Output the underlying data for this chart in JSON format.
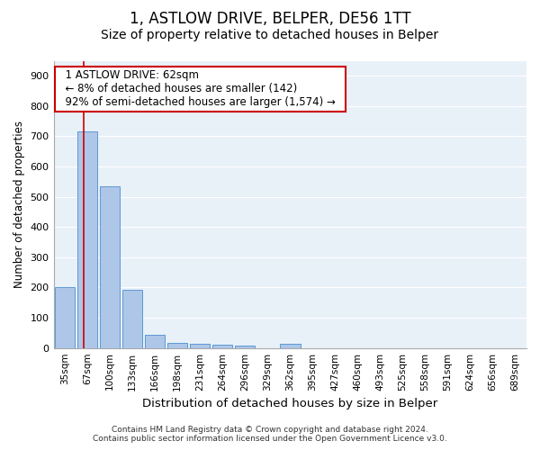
{
  "title1": "1, ASTLOW DRIVE, BELPER, DE56 1TT",
  "title2": "Size of property relative to detached houses in Belper",
  "xlabel": "Distribution of detached houses by size in Belper",
  "ylabel": "Number of detached properties",
  "categories": [
    "35sqm",
    "67sqm",
    "100sqm",
    "133sqm",
    "166sqm",
    "198sqm",
    "231sqm",
    "264sqm",
    "296sqm",
    "329sqm",
    "362sqm",
    "395sqm",
    "427sqm",
    "460sqm",
    "493sqm",
    "525sqm",
    "558sqm",
    "591sqm",
    "624sqm",
    "656sqm",
    "689sqm"
  ],
  "values": [
    200,
    715,
    535,
    193,
    45,
    18,
    14,
    10,
    8,
    0,
    13,
    0,
    0,
    0,
    0,
    0,
    0,
    0,
    0,
    0,
    0
  ],
  "bar_color": "#aec6e8",
  "bar_edge_color": "#5b9bd5",
  "vline_x_index": 0.84,
  "vline_color": "#cc0000",
  "annotation_text": "  1 ASTLOW DRIVE: 62sqm  \n  ← 8% of detached houses are smaller (142)  \n  92% of semi-detached houses are larger (1,574) →  ",
  "annotation_box_color": "#ffffff",
  "annotation_box_edge_color": "#cc0000",
  "ylim": [
    0,
    950
  ],
  "yticks": [
    0,
    100,
    200,
    300,
    400,
    500,
    600,
    700,
    800,
    900
  ],
  "bg_color": "#e8f0f8",
  "footer1": "Contains HM Land Registry data © Crown copyright and database right 2024.",
  "footer2": "Contains public sector information licensed under the Open Government Licence v3.0.",
  "title1_fontsize": 12,
  "title2_fontsize": 10,
  "xlabel_fontsize": 9.5,
  "ylabel_fontsize": 8.5,
  "annotation_fontsize": 8.5
}
